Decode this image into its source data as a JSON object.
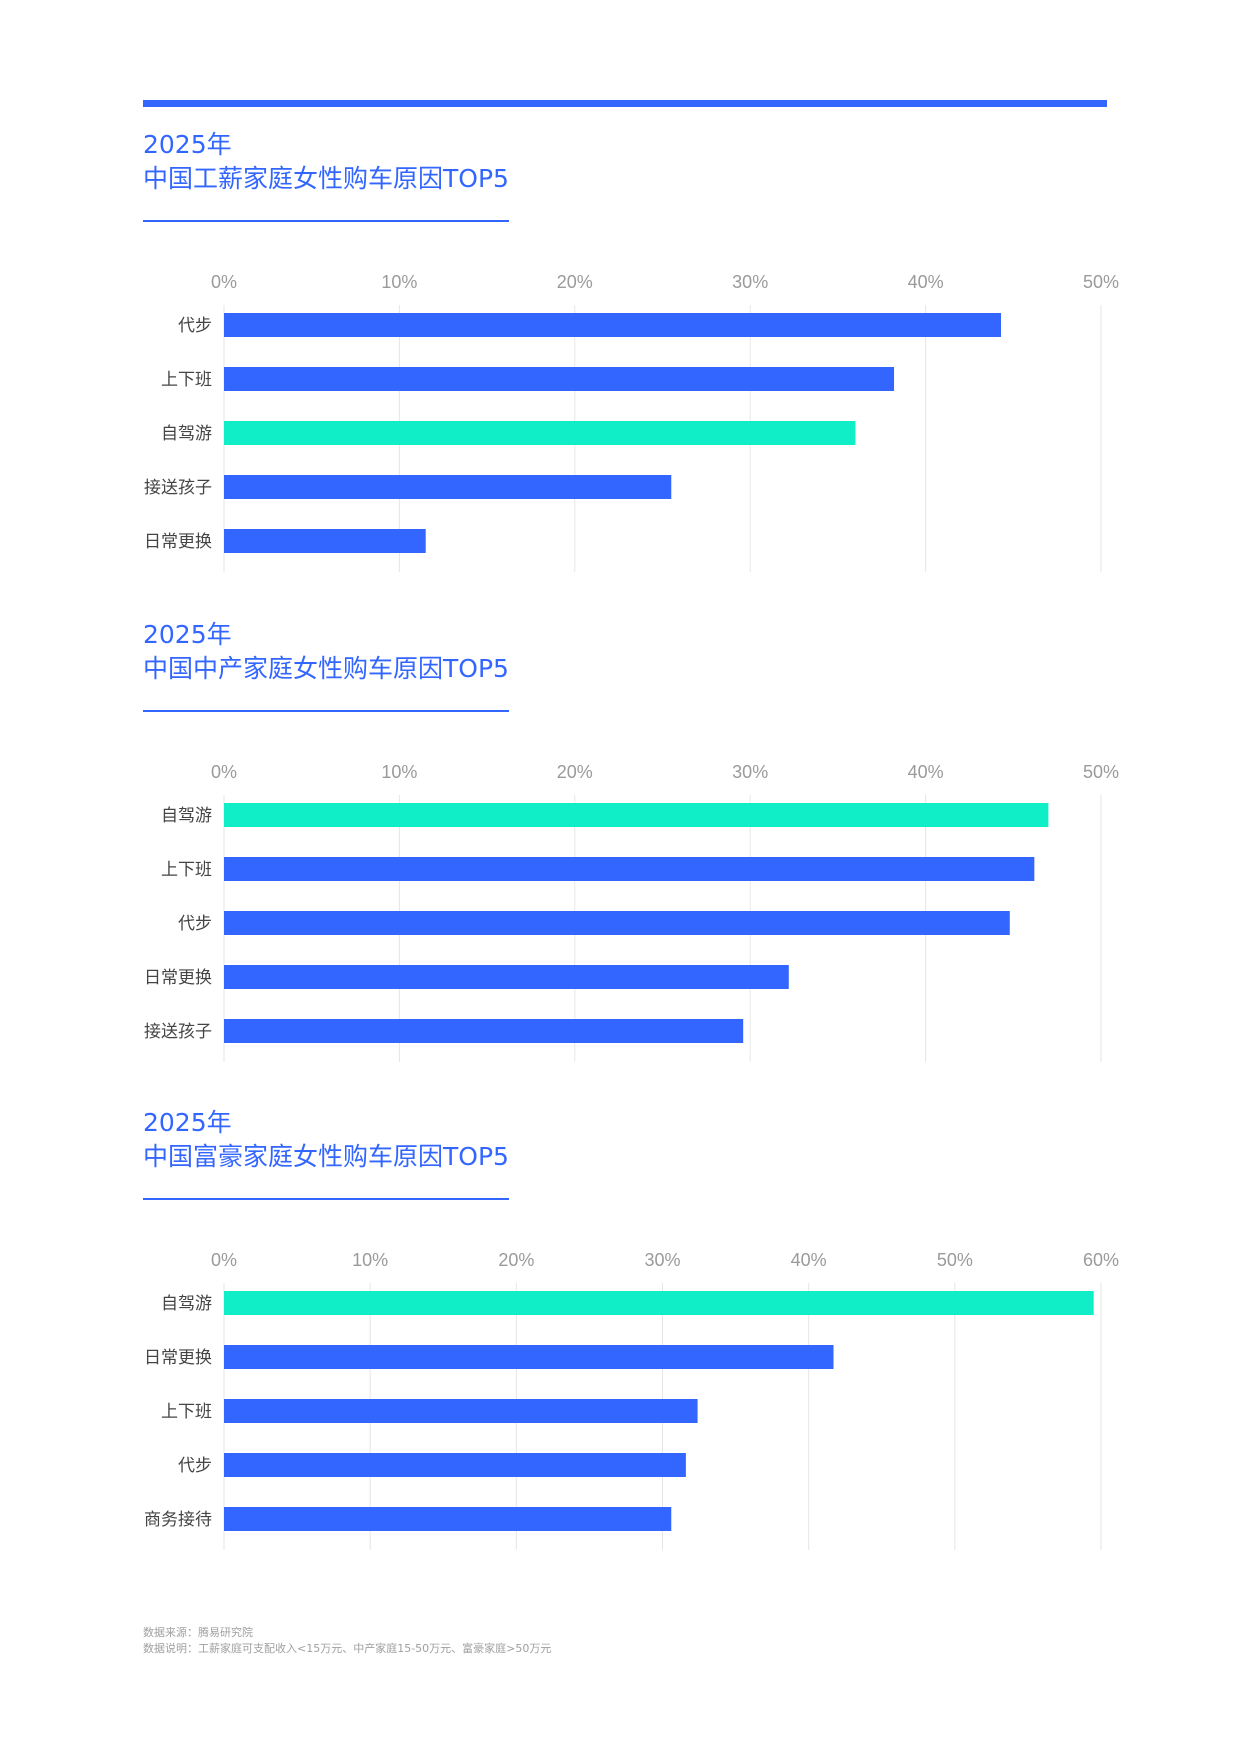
{
  "colors": {
    "accent": "#3366ff",
    "highlight": "#10eec8"
  },
  "charts": [
    {
      "title_year": "2025年",
      "title_main": "中国工薪家庭女性购车原因TOP5",
      "xticks": [
        "0%",
        "10%",
        "20%",
        "30%",
        "40%",
        "50%"
      ]
    },
    {
      "title_year": "2025年",
      "title_main": "中国中产家庭女性购车原因TOP5",
      "xticks": [
        "0%",
        "10%",
        "20%",
        "30%",
        "40%",
        "50%"
      ]
    },
    {
      "title_year": "2025年",
      "title_main": "中国富豪家庭女性购车原因TOP5",
      "xticks": [
        "0%",
        "10%",
        "20%",
        "30%",
        "40%",
        "50%",
        "60%"
      ]
    }
  ],
  "chart_data": [
    {
      "type": "bar",
      "orientation": "horizontal",
      "title": "2025年 中国工薪家庭女性购车原因TOP5",
      "categories": [
        "代步",
        "上下班",
        "自驾游",
        "接送孩子",
        "日常更换"
      ],
      "values": [
        44.3,
        38.2,
        36.0,
        25.5,
        11.5
      ],
      "highlight": "自驾游",
      "unit": "%",
      "xlim": [
        0,
        50
      ],
      "grid": true
    },
    {
      "type": "bar",
      "orientation": "horizontal",
      "title": "2025年 中国中产家庭女性购车原因TOP5",
      "categories": [
        "自驾游",
        "上下班",
        "代步",
        "日常更换",
        "接送孩子"
      ],
      "values": [
        47.0,
        46.2,
        44.8,
        32.2,
        29.6
      ],
      "highlight": "自驾游",
      "unit": "%",
      "xlim": [
        0,
        50
      ],
      "grid": true
    },
    {
      "type": "bar",
      "orientation": "horizontal",
      "title": "2025年 中国富豪家庭女性购车原因TOP5",
      "categories": [
        "自驾游",
        "日常更换",
        "上下班",
        "代步",
        "商务接待"
      ],
      "values": [
        59.5,
        41.7,
        32.4,
        31.6,
        30.6
      ],
      "highlight": "自驾游",
      "unit": "%",
      "xlim": [
        0,
        60
      ],
      "grid": true
    }
  ],
  "footnote": {
    "source": "数据来源：腾易研究院",
    "note": "数据说明：工薪家庭可支配收入<15万元、中产家庭15-50万元、富豪家庭>50万元"
  }
}
